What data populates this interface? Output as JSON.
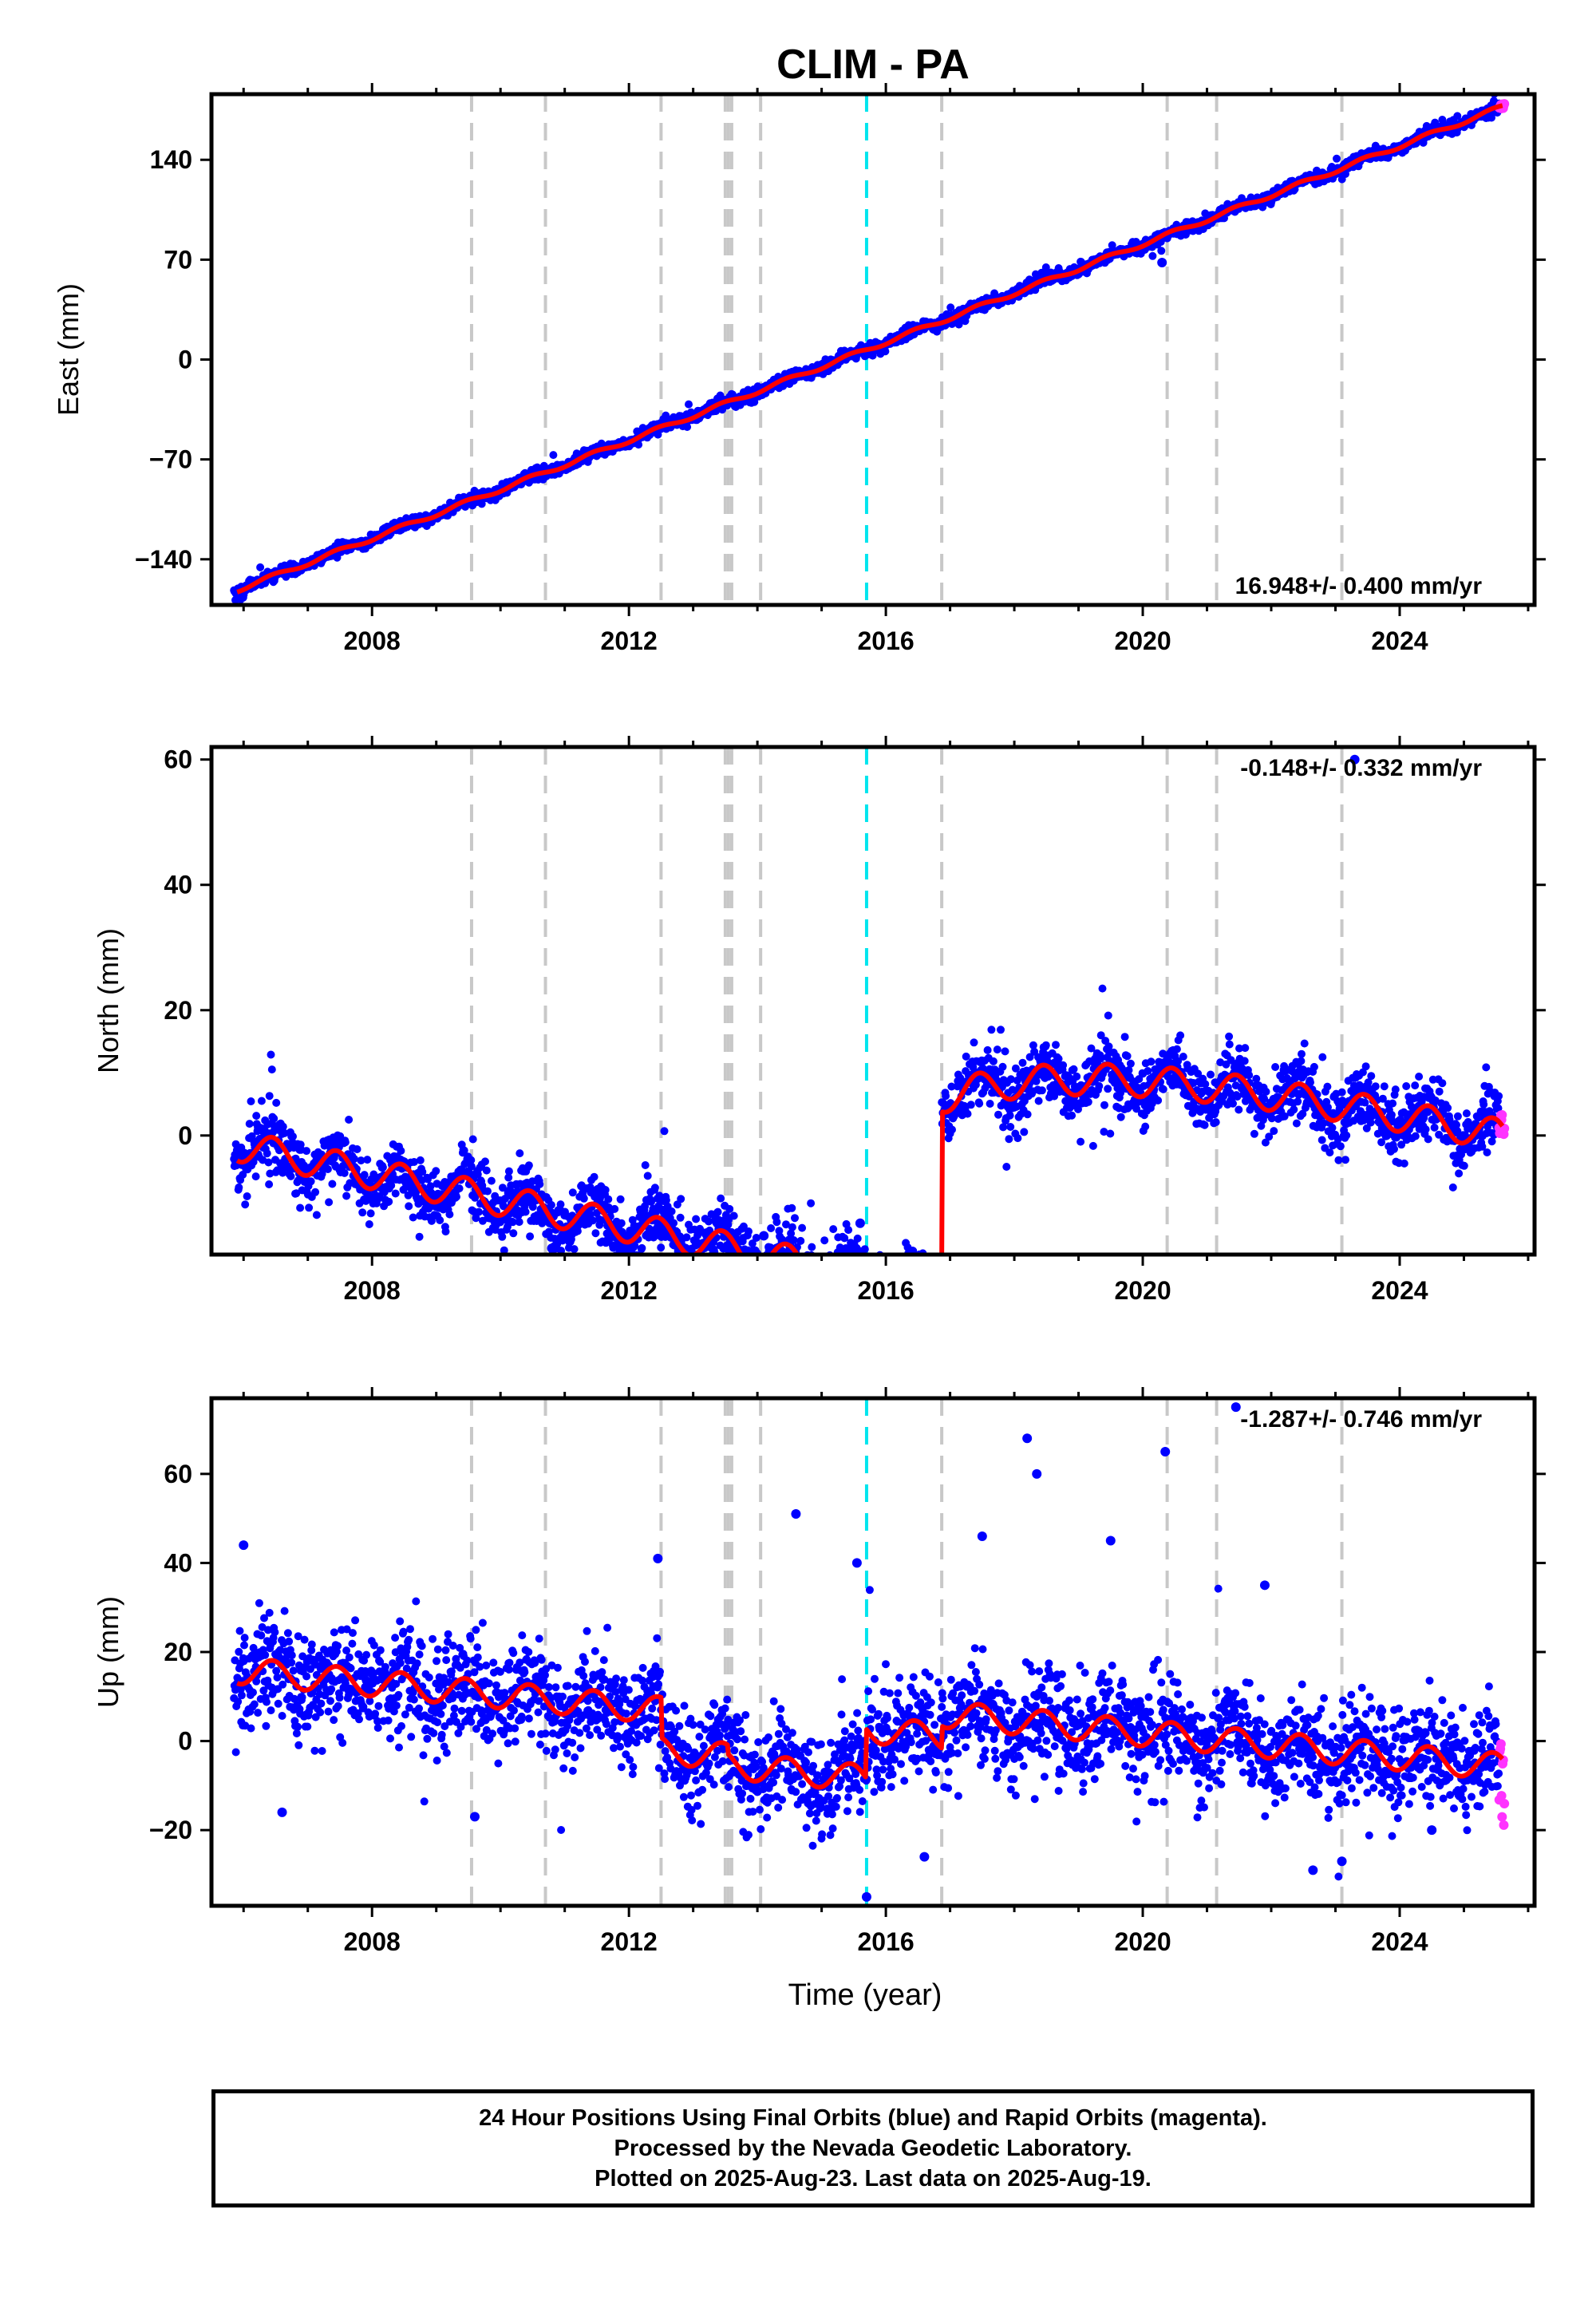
{
  "title": "CLIM - PA",
  "colors": {
    "final_points": "#0000ff",
    "rapid_points": "#ff33ff",
    "model": "#ff0000",
    "equipment_change": "#c8c8c8",
    "earthquake": "#00e5ee"
  },
  "chart_data": [
    {
      "type": "scatter",
      "name": "east",
      "xlabel": "",
      "ylabel": "East (mm)",
      "x_ticks": [
        2008,
        2012,
        2016,
        2020,
        2024
      ],
      "y_ticks": [
        140,
        70,
        0,
        -70,
        -140
      ],
      "y_tick_labels": [
        "140",
        "70",
        "0",
        "−70",
        "−140"
      ],
      "xlim": [
        2005.5,
        2026.1
      ],
      "ylim": [
        -172,
        186
      ],
      "rate_label": "16.948+/- 0.400 mm/yr",
      "rate_position": "bottom-right",
      "model_anchor": {
        "x": [
          2005.9,
          2025.6
        ],
        "y": [
          -163,
          178
        ]
      },
      "seasonal_amplitude": 1.5,
      "steps": [],
      "scatter_sigma": 2.0,
      "outliers": [
        {
          "x": 2020.3,
          "y": 68
        }
      ]
    },
    {
      "type": "scatter",
      "name": "north",
      "xlabel": "",
      "ylabel": "North (mm)",
      "x_ticks": [
        2008,
        2012,
        2016,
        2020,
        2024
      ],
      "y_ticks": [
        60,
        40,
        20,
        0
      ],
      "y_tick_labels": [
        "60",
        "40",
        "20",
        "0"
      ],
      "xlim": [
        2005.5,
        2026.1
      ],
      "ylim": [
        -19,
        62
      ],
      "rate_label": "-0.148+/- 0.332 mm/yr",
      "rate_position": "top-right",
      "model_anchor": {
        "x": [
          2005.9,
          2025.6
        ],
        "y": [
          -4,
          1.5
        ]
      },
      "seasonal_amplitude": 2.5,
      "steps": [
        {
          "x": 2016.87,
          "size": 31
        }
      ],
      "post_seismic": {
        "x": 2016.87,
        "amplitude": 13,
        "tau": 2.5
      },
      "scatter_sigma": 2.4,
      "outliers": [
        {
          "x": 2010.8,
          "y": -18
        },
        {
          "x": 2014.1,
          "y": -16
        },
        {
          "x": 2015.6,
          "y": -14
        },
        {
          "x": 2023.3,
          "y": 60
        }
      ]
    },
    {
      "type": "scatter",
      "name": "up",
      "xlabel": "Time (year)",
      "ylabel": "Up (mm)",
      "x_ticks": [
        2008,
        2012,
        2016,
        2020,
        2024
      ],
      "y_ticks": [
        60,
        40,
        20,
        0,
        -20
      ],
      "y_tick_labels": [
        "60",
        "40",
        "20",
        "0",
        "−20"
      ],
      "xlim": [
        2005.5,
        2026.1
      ],
      "ylim": [
        -37,
        77
      ],
      "rate_label": "-1.287+/- 0.746 mm/yr",
      "rate_position": "top-right",
      "model_anchor": {
        "x": [
          2005.9,
          2025.6
        ],
        "y": [
          13,
          -4
        ]
      },
      "seasonal_amplitude": 3.0,
      "steps": [
        {
          "x": 2012.5,
          "size": -9
        },
        {
          "x": 2013.55,
          "size": -2
        },
        {
          "x": 2015.7,
          "size": 11
        },
        {
          "x": 2016.87,
          "size": 5
        }
      ],
      "scatter_sigma": 5.5,
      "outliers": [
        {
          "x": 2006.0,
          "y": 44
        },
        {
          "x": 2012.45,
          "y": 41
        },
        {
          "x": 2014.6,
          "y": 51
        },
        {
          "x": 2015.55,
          "y": 40
        },
        {
          "x": 2017.5,
          "y": 46
        },
        {
          "x": 2018.2,
          "y": 68
        },
        {
          "x": 2018.35,
          "y": 60
        },
        {
          "x": 2019.5,
          "y": 45
        },
        {
          "x": 2020.35,
          "y": 65
        },
        {
          "x": 2021.45,
          "y": 75
        },
        {
          "x": 2021.9,
          "y": 35
        },
        {
          "x": 2022.65,
          "y": -29
        },
        {
          "x": 2023.1,
          "y": -27
        },
        {
          "x": 2015.7,
          "y": -35
        },
        {
          "x": 2016.6,
          "y": -26
        },
        {
          "x": 2006.6,
          "y": -16
        },
        {
          "x": 2009.6,
          "y": -17
        },
        {
          "x": 2024.5,
          "y": -20
        }
      ]
    }
  ],
  "equipment_change_years": [
    2009.55,
    2010.7,
    2012.5,
    2013.5,
    2013.55,
    2013.6,
    2014.05,
    2016.87,
    2020.38,
    2021.15,
    2023.1
  ],
  "earthquake_years": [
    2015.7
  ],
  "data_span": {
    "start": 2005.85,
    "end": 2025.63,
    "rapid_start": 2025.55
  },
  "footer": {
    "line1": "24 Hour Positions Using Final Orbits (blue) and Rapid Orbits (magenta).",
    "line2": "Processed by the Nevada Geodetic Laboratory.",
    "line3": "Plotted on 2025-Aug-23. Last data on 2025-Aug-19."
  }
}
